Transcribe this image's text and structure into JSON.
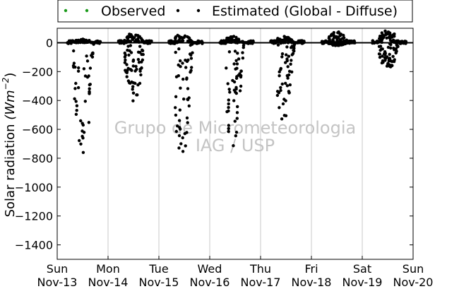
{
  "chart_data": {
    "type": "scatter",
    "title": "",
    "xlabel": "",
    "ylabel": "Solar radiation (Wm⁻²)",
    "ylabel_parts": {
      "text": "Solar radiation ",
      "unit_base": "(Wm",
      "unit_exp": "−2",
      "unit_close": ")"
    },
    "xlim": [
      0,
      7
    ],
    "ylim": [
      -1500,
      100
    ],
    "yticks": [
      0,
      -200,
      -400,
      -600,
      -800,
      -1000,
      -1200,
      -1400
    ],
    "xticks": [
      {
        "x": 0,
        "day": "Sun",
        "date": "Nov-13"
      },
      {
        "x": 1,
        "day": "Mon",
        "date": "Nov-14"
      },
      {
        "x": 2,
        "day": "Tue",
        "date": "Nov-15"
      },
      {
        "x": 3,
        "day": "Wed",
        "date": "Nov-16"
      },
      {
        "x": 4,
        "day": "Thu",
        "date": "Nov-17"
      },
      {
        "x": 5,
        "day": "Fri",
        "date": "Nov-18"
      },
      {
        "x": 6,
        "day": "Sat",
        "date": "Nov-19"
      },
      {
        "x": 7,
        "day": "Sun",
        "date": "Nov-20"
      }
    ],
    "grid": "vertical",
    "legend": {
      "position": "top (outside)",
      "entries": [
        {
          "label": "Observed",
          "color": "#1a9a1a"
        },
        {
          "label": "Estimated (Global - Diffuse)",
          "color": "#000000"
        }
      ]
    },
    "watermark": [
      "Grupo de Micrometeorologia",
      "IAG / USP"
    ],
    "series": [
      {
        "name": "Estimated (Global - Diffuse)",
        "color": "#000000",
        "days": [
          {
            "day": 0,
            "min": -830,
            "max": 25,
            "peak": 0.5,
            "spread": 0.08
          },
          {
            "day": 1,
            "min": -420,
            "max": 70,
            "peak": 0.5,
            "spread": 0.12
          },
          {
            "day": 2,
            "min": -815,
            "max": 60,
            "peak": 0.45,
            "spread": 0.14
          },
          {
            "day": 3,
            "min": -730,
            "max": 45,
            "peak": 0.45,
            "spread": 0.15
          },
          {
            "day": 4,
            "min": -540,
            "max": 45,
            "peak": 0.45,
            "spread": 0.14
          },
          {
            "day": 5,
            "min": -20,
            "max": 80,
            "peak": 0.5,
            "spread": 0.15
          },
          {
            "day": 6,
            "min": -200,
            "max": 95,
            "peak": 0.5,
            "spread": 0.15
          }
        ]
      },
      {
        "name": "Observed",
        "color": "#1a9a1a",
        "days": []
      }
    ]
  }
}
